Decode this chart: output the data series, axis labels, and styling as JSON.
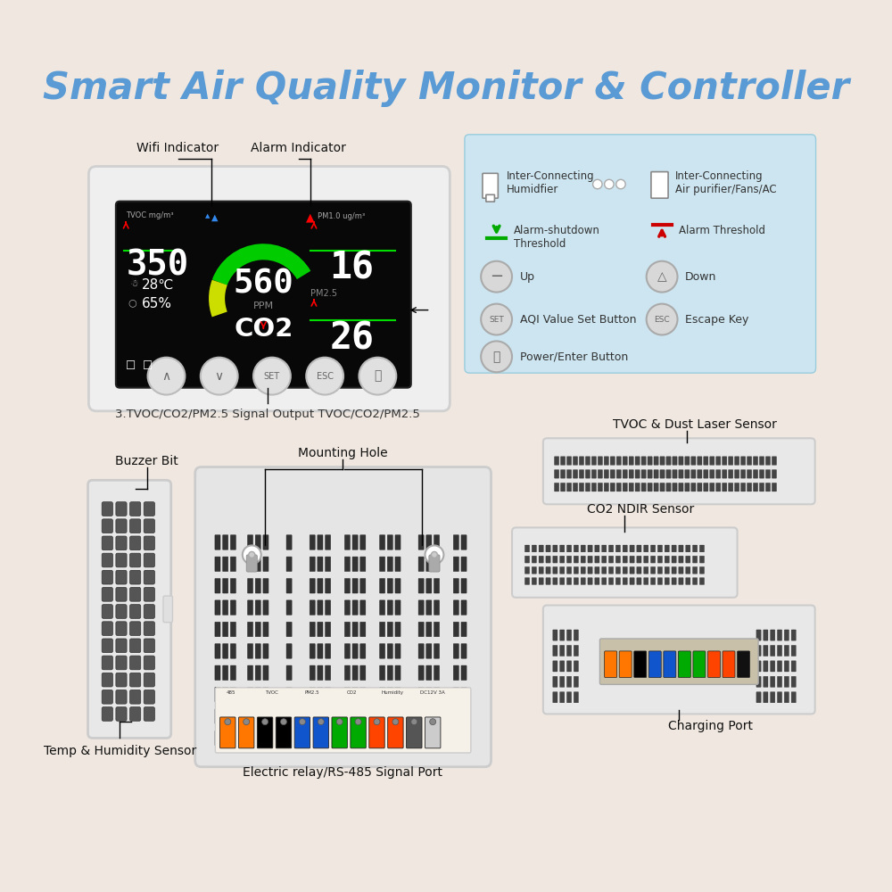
{
  "title": "Smart Air Quality Monitor & Controller",
  "title_color": "#5b9bd5",
  "bg_color": "#f0e8e0",
  "label_font_size": 10,
  "title_font_size": 30,
  "annotation_bottom": "3.TVOC/CO2/PM2.5 Signal Output TVOC/CO2/PM2.5",
  "bottom_labels": {
    "buzzer_bit": "Buzzer Bit",
    "mounting_hole": "Mounting Hole",
    "co2_ndir": "CO2 NDIR Sensor",
    "tvoc_dust": "TVOC & Dust Laser Sensor",
    "temp_humidity": "Temp & Humidity Sensor",
    "electric_relay": "Electric relay/RS-485 Signal Port",
    "charging_port": "Charging Port"
  },
  "wifi_label": "Wifi Indicator",
  "alarm_label": "Alarm Indicator",
  "blue_box_bg": "#cce5f0",
  "screen_bg": "#0a0a0a"
}
